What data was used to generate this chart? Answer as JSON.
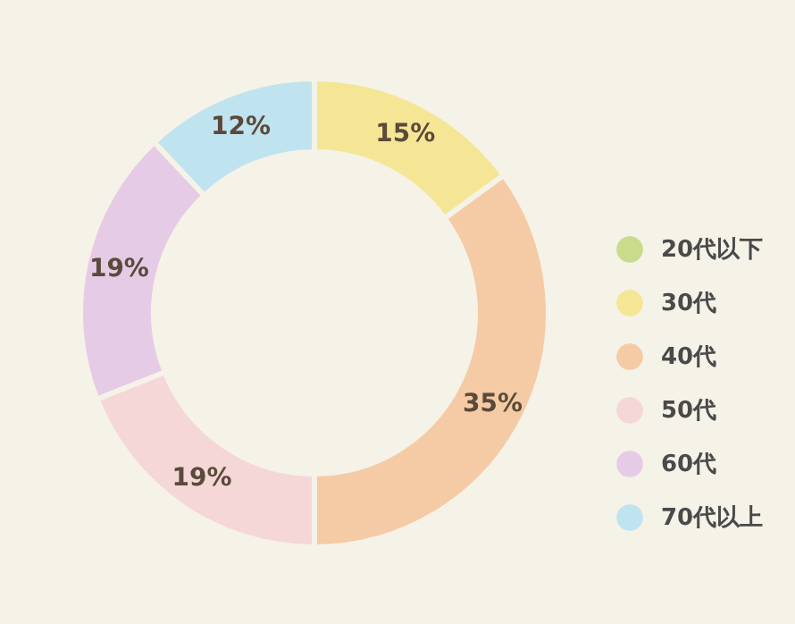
{
  "chart_data": {
    "type": "donut",
    "categories": [
      "20代以下",
      "30代",
      "40代",
      "50代",
      "60代",
      "70代以上"
    ],
    "values": [
      0,
      15,
      35,
      19,
      19,
      12
    ],
    "value_labels": [
      null,
      "15%",
      "35%",
      "19%",
      "19%",
      "12%"
    ],
    "colors": [
      "#c8dc8c",
      "#f5e696",
      "#f5cba5",
      "#f5d7d7",
      "#e6cbe6",
      "#c0e3f0"
    ],
    "legend": "right"
  }
}
